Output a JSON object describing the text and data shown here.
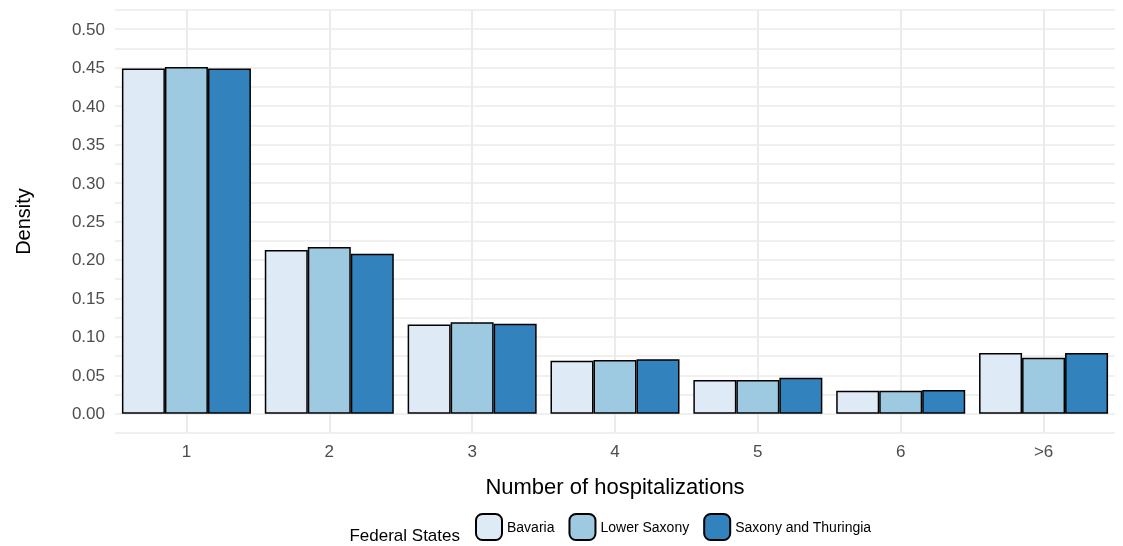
{
  "chart_data": {
    "type": "bar",
    "xlabel": "Number of hospitalizations",
    "ylabel": "Density",
    "legend_title": "Federal States",
    "categories": [
      "1",
      "2",
      "3",
      "4",
      "5",
      "6",
      ">6"
    ],
    "series": [
      {
        "name": "Bavaria",
        "color": "#deebf7",
        "values": [
          0.449,
          0.213,
          0.116,
          0.069,
          0.044,
          0.03,
          0.079
        ]
      },
      {
        "name": "Lower Saxony",
        "color": "#9ecae1",
        "values": [
          0.451,
          0.217,
          0.119,
          0.07,
          0.044,
          0.03,
          0.073
        ]
      },
      {
        "name": "Saxony and Thuringia",
        "color": "#3182bd",
        "values": [
          0.449,
          0.208,
          0.117,
          0.071,
          0.047,
          0.031,
          0.079
        ]
      }
    ],
    "ylim": [
      -0.025,
      0.525
    ],
    "yticks": [
      {
        "value": -0.025,
        "label": null
      },
      {
        "value": 0,
        "label": "0.00"
      },
      {
        "value": 0.025,
        "label": null
      },
      0.05,
      {
        "value": 0.075,
        "label": null
      },
      {
        "value": 0.1,
        "label": "0.10"
      },
      {
        "value": 0.125,
        "label": null
      },
      0.15,
      {
        "value": 0.175,
        "label": null
      },
      {
        "value": 0.2,
        "label": "0.20"
      },
      {
        "value": 0.225,
        "label": null
      },
      0.25,
      {
        "value": 0.275,
        "label": null
      },
      {
        "value": 0.3,
        "label": "0.30"
      },
      {
        "value": 0.325,
        "label": null
      },
      0.35,
      {
        "value": 0.375,
        "label": null
      },
      {
        "value": 0.4,
        "label": "0.40"
      },
      {
        "value": 0.425,
        "label": null
      },
      0.45,
      {
        "value": 0.475,
        "label": null
      },
      {
        "value": 0.5,
        "label": "0.50"
      },
      {
        "value": 0.525,
        "label": null
      }
    ],
    "grid": true,
    "legend": "bottom"
  }
}
